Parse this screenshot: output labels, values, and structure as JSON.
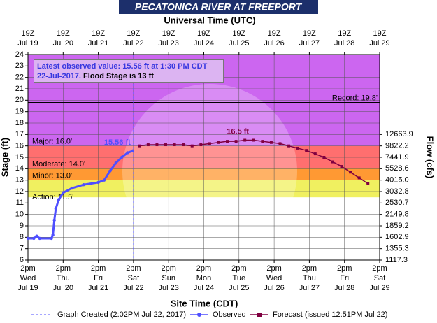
{
  "chart_data": {
    "type": "line",
    "title": "PECATONICA RIVER AT FREEPORT",
    "top_axis_title": "Universal Time (UTC)",
    "x_label": "Site Time (CDT)",
    "y_label": "Stage (ft)",
    "y2_label": "Flow (cfs)",
    "xlim": [
      "Jul 19 14:00",
      "Jul 29 14:00"
    ],
    "ylim": [
      6,
      24
    ],
    "yticks": [
      6,
      7,
      8,
      9,
      10,
      11,
      12,
      13,
      14,
      15,
      16,
      17,
      18,
      19,
      20,
      21,
      22,
      23,
      24
    ],
    "grid": true,
    "rating": [
      {
        "stage": 6,
        "flow": 1117.3
      },
      {
        "stage": 7,
        "flow": 1355.3
      },
      {
        "stage": 8,
        "flow": 1602.9
      },
      {
        "stage": 9,
        "flow": 1859.2
      },
      {
        "stage": 10,
        "flow": 2149.8
      },
      {
        "stage": 11,
        "flow": 2530.7
      },
      {
        "stage": 12,
        "flow": 3032.8
      },
      {
        "stage": 13,
        "flow": {
          "value": 4015,
          "label": "4015.0"
        }
      },
      {
        "stage": 14,
        "flow": 5528.6
      },
      {
        "stage": 15,
        "flow": 7441.9
      },
      {
        "stage": 16,
        "flow": 9822.2
      },
      {
        "stage": 17,
        "flow": 12663.9
      }
    ],
    "xticks": [
      {
        "value": "Jul 19 14:00",
        "label": "2pm",
        "weekday": "Wed",
        "date": "Jul 19"
      },
      {
        "value": "Jul 20 14:00",
        "label": "2pm",
        "weekday": "Thu",
        "date": "Jul 20"
      },
      {
        "value": "Jul 21 14:00",
        "label": "2pm",
        "weekday": "Fri",
        "date": "Jul 21"
      },
      {
        "value": "Jul 22 14:00",
        "label": "2pm",
        "weekday": "Sat",
        "date": "Jul 22"
      },
      {
        "value": "Jul 23 14:00",
        "label": "2pm",
        "weekday": "Sun",
        "date": "Jul 23"
      },
      {
        "value": "Jul 24 14:00",
        "label": "2pm",
        "weekday": "Mon",
        "date": "Jul 24"
      },
      {
        "value": "Jul 25 14:00",
        "label": "2pm",
        "weekday": "Tue",
        "date": "Jul 25"
      },
      {
        "value": "Jul 26 14:00",
        "label": "2pm",
        "weekday": "Wed",
        "date": "Jul 26"
      },
      {
        "value": "Jul 27 14:00",
        "label": "2pm",
        "weekday": "Thu",
        "date": "Jul 27"
      },
      {
        "value": "Jul 28 14:00",
        "label": "2pm",
        "weekday": "Fri",
        "date": "Jul 28"
      },
      {
        "value": "Jul 29 14:00",
        "label": "2pm",
        "weekday": "Sat",
        "date": "Jul 29"
      }
    ],
    "x2ticks": [
      {
        "value": "Jul 19 14:00",
        "label": "19Z",
        "date": "Jul 19"
      },
      {
        "value": "Jul 20 14:00",
        "label": "19Z",
        "date": "Jul 20"
      },
      {
        "value": "Jul 21 14:00",
        "label": "19Z",
        "date": "Jul 21"
      },
      {
        "value": "Jul 22 14:00",
        "label": "19Z",
        "date": "Jul 22"
      },
      {
        "value": "Jul 23 14:00",
        "label": "19Z",
        "date": "Jul 23"
      },
      {
        "value": "Jul 24 14:00",
        "label": "19Z",
        "date": "Jul 24"
      },
      {
        "value": "Jul 25 14:00",
        "label": "19Z",
        "date": "Jul 25"
      },
      {
        "value": "Jul 26 14:00",
        "label": "19Z",
        "date": "Jul 26"
      },
      {
        "value": "Jul 27 14:00",
        "label": "19Z",
        "date": "Jul 27"
      },
      {
        "value": "Jul 28 14:00",
        "label": "19Z",
        "date": "Jul 28"
      },
      {
        "value": "Jul 29 14:00",
        "label": "19Z",
        "date": "Jul 29"
      }
    ],
    "bands": [
      {
        "label": "Major: 16.0'",
        "value": 16,
        "color": "#cc66f0"
      },
      {
        "label": "Moderate: 14.0'",
        "value": 14,
        "color": "#ff6f6f"
      },
      {
        "label": "Minor: 13.0'",
        "value": 13,
        "color": "#ff9933"
      },
      {
        "label": "Action: 11.5'",
        "value": 11.5,
        "color": "#f0f060"
      }
    ],
    "record": {
      "label": "Record: 19.8'",
      "value": 19.8
    },
    "series": [
      {
        "name": "Observed",
        "color": "#4f4fff",
        "x": [
          "Jul 19 14:00",
          "Jul 19 18:00",
          "Jul 19 20:00",
          "Jul 19 22:00",
          "Jul 20 06:00",
          "Jul 20 07:00",
          "Jul 20 08:00",
          "Jul 20 09:00",
          "Jul 20 11:00",
          "Jul 20 14:00",
          "Jul 20 20:00",
          "Jul 21 04:00",
          "Jul 21 14:00",
          "Jul 21 18:00",
          "Jul 21 22:00",
          "Jul 22 02:00",
          "Jul 22 06:00",
          "Jul 22 10:00",
          "Jul 22 13:30"
        ],
        "values": [
          7.9,
          7.9,
          8.1,
          7.9,
          7.9,
          8.2,
          9.5,
          10.5,
          11.3,
          11.9,
          12.3,
          12.6,
          12.8,
          13.0,
          13.8,
          14.5,
          15.0,
          15.4,
          15.56
        ]
      },
      {
        "name": "Forecast (issued 12:51PM Jul 22)",
        "color": "#800040",
        "x": [
          "Jul 22 18:00",
          "Jul 23 00:00",
          "Jul 23 06:00",
          "Jul 23 12:00",
          "Jul 23 18:00",
          "Jul 24 00:00",
          "Jul 24 06:00",
          "Jul 24 12:00",
          "Jul 24 18:00",
          "Jul 25 00:00",
          "Jul 25 06:00",
          "Jul 25 12:00",
          "Jul 25 18:00",
          "Jul 26 00:00",
          "Jul 26 06:00",
          "Jul 26 12:00",
          "Jul 26 18:00",
          "Jul 27 00:00",
          "Jul 27 06:00",
          "Jul 27 12:00",
          "Jul 27 18:00",
          "Jul 28 00:00",
          "Jul 28 06:00",
          "Jul 28 12:00",
          "Jul 28 18:00",
          "Jul 29 00:00",
          "Jul 29 06:00"
        ],
        "values": [
          16.0,
          16.1,
          16.1,
          16.1,
          16.1,
          16.1,
          16.0,
          16.1,
          16.2,
          16.3,
          16.4,
          16.4,
          16.5,
          16.5,
          16.4,
          16.3,
          16.2,
          16.0,
          15.8,
          15.6,
          15.3,
          15.0,
          14.6,
          14.2,
          13.7,
          13.2,
          12.7
        ]
      }
    ],
    "created_line": {
      "name": "Graph Created (2:02PM Jul 22, 2017)",
      "x": "Jul 22 14:02",
      "color": "#4f4fff"
    },
    "annotations": [
      {
        "text": "15.56 ft",
        "x": "Jul 22 13:30",
        "y": 15.56,
        "color": "#4f4fff"
      },
      {
        "text": "16.5 ft",
        "x": "Jul 25 18:00",
        "y": 16.5,
        "color": "#800040"
      }
    ],
    "latest_note": "Latest observed value: 15.56 ft at 1:30 PM CDT 22-Jul-2017.",
    "flood_note": "Flood Stage is 13 ft"
  }
}
